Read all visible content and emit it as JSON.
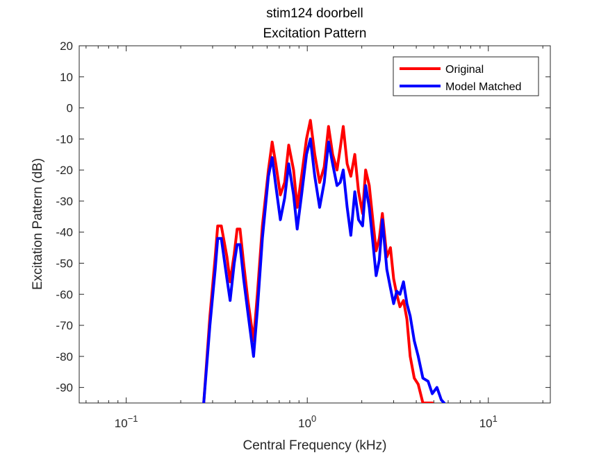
{
  "chart_data": {
    "type": "line",
    "title": "stim124 doorbell",
    "subtitle": "Excitation Pattern",
    "xlabel": "Central Frequency (kHz)",
    "ylabel": "Excitation Pattern (dB)",
    "xscale": "log",
    "xlim": [
      0.055,
      22
    ],
    "ylim": [
      -95,
      20
    ],
    "xtick_exponents": [
      -1,
      0,
      1
    ],
    "yticks": [
      20,
      10,
      0,
      -10,
      -20,
      -30,
      -40,
      -50,
      -60,
      -70,
      -80,
      -90
    ],
    "legend_placement": "top-right",
    "series": [
      {
        "name": "Original",
        "color": "#ff0000",
        "x": [
          0.268,
          0.29,
          0.31,
          0.32,
          0.335,
          0.36,
          0.375,
          0.395,
          0.41,
          0.425,
          0.445,
          0.47,
          0.505,
          0.53,
          0.565,
          0.61,
          0.64,
          0.67,
          0.71,
          0.75,
          0.79,
          0.84,
          0.88,
          0.93,
          0.99,
          1.04,
          1.1,
          1.17,
          1.24,
          1.31,
          1.38,
          1.46,
          1.52,
          1.58,
          1.66,
          1.74,
          1.83,
          1.92,
          2.02,
          2.1,
          2.2,
          2.3,
          2.4,
          2.5,
          2.6,
          2.75,
          2.88,
          3.0,
          3.12,
          3.25,
          3.4,
          3.55,
          3.7,
          3.9,
          4.1,
          4.35,
          4.65,
          4.9
        ],
        "y": [
          -95,
          -67,
          -48,
          -38,
          -38,
          -48,
          -56,
          -47,
          -39,
          -39,
          -50,
          -62,
          -75,
          -60,
          -38,
          -20,
          -11,
          -18,
          -28,
          -24,
          -12,
          -20,
          -32,
          -22,
          -10,
          -4,
          -15,
          -24,
          -19,
          -6,
          -15,
          -20,
          -13,
          -6,
          -18,
          -22,
          -15,
          -27,
          -34,
          -20,
          -25,
          -36,
          -46,
          -42,
          -34,
          -48,
          -45,
          -55,
          -60,
          -64,
          -62,
          -68,
          -80,
          -87,
          -89,
          -95,
          -95,
          -95
        ]
      },
      {
        "name": "Model Matched",
        "color": "#0000ff",
        "x": [
          0.268,
          0.29,
          0.31,
          0.32,
          0.335,
          0.36,
          0.375,
          0.395,
          0.41,
          0.425,
          0.445,
          0.47,
          0.505,
          0.53,
          0.565,
          0.61,
          0.64,
          0.67,
          0.71,
          0.75,
          0.79,
          0.84,
          0.88,
          0.93,
          0.99,
          1.04,
          1.1,
          1.17,
          1.24,
          1.31,
          1.38,
          1.46,
          1.52,
          1.58,
          1.66,
          1.74,
          1.83,
          1.92,
          2.02,
          2.1,
          2.2,
          2.3,
          2.4,
          2.5,
          2.6,
          2.75,
          2.88,
          3.0,
          3.12,
          3.25,
          3.4,
          3.55,
          3.7,
          3.9,
          4.1,
          4.35,
          4.65,
          4.9,
          5.2,
          5.5,
          5.7
        ],
        "y": [
          -95,
          -70,
          -52,
          -42,
          -42,
          -55,
          -62,
          -50,
          -44,
          -44,
          -55,
          -66,
          -80,
          -65,
          -42,
          -22,
          -16,
          -25,
          -36,
          -29,
          -18,
          -28,
          -39,
          -28,
          -15,
          -10,
          -22,
          -32,
          -24,
          -11,
          -18,
          -25,
          -24,
          -20,
          -32,
          -41,
          -27,
          -36,
          -38,
          -25,
          -32,
          -43,
          -54,
          -49,
          -36,
          -52,
          -58,
          -63,
          -59,
          -60,
          -56,
          -63,
          -67,
          -75,
          -80,
          -87,
          -88,
          -92,
          -90,
          -94,
          -95
        ]
      }
    ]
  }
}
